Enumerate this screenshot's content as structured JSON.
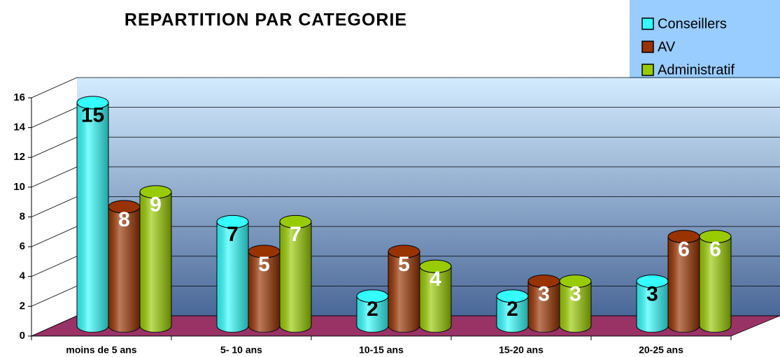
{
  "chart_data": {
    "type": "bar3d",
    "title": "REPARTITION PAR CATEGORIE",
    "categories": [
      "moins de 5 ans",
      "5- 10 ans",
      "10-15 ans",
      "15-20 ans",
      "20-25 ans"
    ],
    "series": [
      {
        "name": "Conseillers",
        "color": "#33ffff",
        "label_color": "#000000",
        "values": [
          15,
          7,
          2,
          2,
          3
        ]
      },
      {
        "name": "AV",
        "color": "#993300",
        "label_color": "#ffffff",
        "values": [
          8,
          5,
          5,
          3,
          6
        ]
      },
      {
        "name": "Administratif",
        "color": "#99cc00",
        "label_color": "#ffffff",
        "values": [
          9,
          7,
          4,
          3,
          6
        ]
      }
    ],
    "ylim": [
      0,
      16
    ],
    "yticks": [
      0,
      2,
      4,
      6,
      8,
      10,
      12,
      14,
      16
    ],
    "grid": true,
    "legend": "top-right"
  }
}
